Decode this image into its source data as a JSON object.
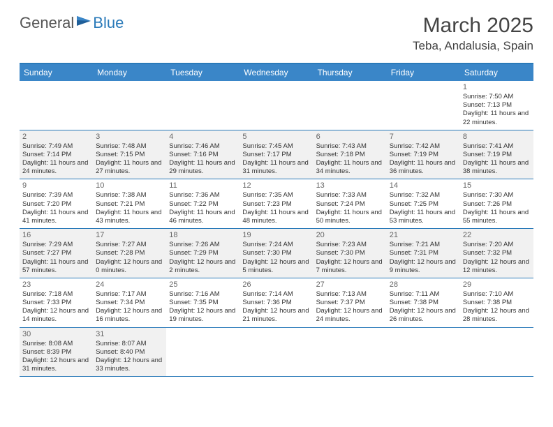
{
  "brand": {
    "general": "General",
    "blue": "Blue"
  },
  "title": "March 2025",
  "location": "Teba, Andalusia, Spain",
  "colors": {
    "header_bg": "#3a86c8",
    "accent": "#2a7ab9",
    "shaded": "#f1f1f1",
    "text": "#333333"
  },
  "dayNames": [
    "Sunday",
    "Monday",
    "Tuesday",
    "Wednesday",
    "Thursday",
    "Friday",
    "Saturday"
  ],
  "weeks": [
    [
      {
        "empty": true
      },
      {
        "empty": true
      },
      {
        "empty": true
      },
      {
        "empty": true
      },
      {
        "empty": true
      },
      {
        "empty": true
      },
      {
        "num": "1",
        "shaded": false,
        "sunrise": "Sunrise: 7:50 AM",
        "sunset": "Sunset: 7:13 PM",
        "daylight": "Daylight: 11 hours and 22 minutes."
      }
    ],
    [
      {
        "num": "2",
        "shaded": true,
        "sunrise": "Sunrise: 7:49 AM",
        "sunset": "Sunset: 7:14 PM",
        "daylight": "Daylight: 11 hours and 24 minutes."
      },
      {
        "num": "3",
        "shaded": true,
        "sunrise": "Sunrise: 7:48 AM",
        "sunset": "Sunset: 7:15 PM",
        "daylight": "Daylight: 11 hours and 27 minutes."
      },
      {
        "num": "4",
        "shaded": true,
        "sunrise": "Sunrise: 7:46 AM",
        "sunset": "Sunset: 7:16 PM",
        "daylight": "Daylight: 11 hours and 29 minutes."
      },
      {
        "num": "5",
        "shaded": true,
        "sunrise": "Sunrise: 7:45 AM",
        "sunset": "Sunset: 7:17 PM",
        "daylight": "Daylight: 11 hours and 31 minutes."
      },
      {
        "num": "6",
        "shaded": true,
        "sunrise": "Sunrise: 7:43 AM",
        "sunset": "Sunset: 7:18 PM",
        "daylight": "Daylight: 11 hours and 34 minutes."
      },
      {
        "num": "7",
        "shaded": true,
        "sunrise": "Sunrise: 7:42 AM",
        "sunset": "Sunset: 7:19 PM",
        "daylight": "Daylight: 11 hours and 36 minutes."
      },
      {
        "num": "8",
        "shaded": true,
        "sunrise": "Sunrise: 7:41 AM",
        "sunset": "Sunset: 7:19 PM",
        "daylight": "Daylight: 11 hours and 38 minutes."
      }
    ],
    [
      {
        "num": "9",
        "shaded": false,
        "sunrise": "Sunrise: 7:39 AM",
        "sunset": "Sunset: 7:20 PM",
        "daylight": "Daylight: 11 hours and 41 minutes."
      },
      {
        "num": "10",
        "shaded": false,
        "sunrise": "Sunrise: 7:38 AM",
        "sunset": "Sunset: 7:21 PM",
        "daylight": "Daylight: 11 hours and 43 minutes."
      },
      {
        "num": "11",
        "shaded": false,
        "sunrise": "Sunrise: 7:36 AM",
        "sunset": "Sunset: 7:22 PM",
        "daylight": "Daylight: 11 hours and 46 minutes."
      },
      {
        "num": "12",
        "shaded": false,
        "sunrise": "Sunrise: 7:35 AM",
        "sunset": "Sunset: 7:23 PM",
        "daylight": "Daylight: 11 hours and 48 minutes."
      },
      {
        "num": "13",
        "shaded": false,
        "sunrise": "Sunrise: 7:33 AM",
        "sunset": "Sunset: 7:24 PM",
        "daylight": "Daylight: 11 hours and 50 minutes."
      },
      {
        "num": "14",
        "shaded": false,
        "sunrise": "Sunrise: 7:32 AM",
        "sunset": "Sunset: 7:25 PM",
        "daylight": "Daylight: 11 hours and 53 minutes."
      },
      {
        "num": "15",
        "shaded": false,
        "sunrise": "Sunrise: 7:30 AM",
        "sunset": "Sunset: 7:26 PM",
        "daylight": "Daylight: 11 hours and 55 minutes."
      }
    ],
    [
      {
        "num": "16",
        "shaded": true,
        "sunrise": "Sunrise: 7:29 AM",
        "sunset": "Sunset: 7:27 PM",
        "daylight": "Daylight: 11 hours and 57 minutes."
      },
      {
        "num": "17",
        "shaded": true,
        "sunrise": "Sunrise: 7:27 AM",
        "sunset": "Sunset: 7:28 PM",
        "daylight": "Daylight: 12 hours and 0 minutes."
      },
      {
        "num": "18",
        "shaded": true,
        "sunrise": "Sunrise: 7:26 AM",
        "sunset": "Sunset: 7:29 PM",
        "daylight": "Daylight: 12 hours and 2 minutes."
      },
      {
        "num": "19",
        "shaded": true,
        "sunrise": "Sunrise: 7:24 AM",
        "sunset": "Sunset: 7:30 PM",
        "daylight": "Daylight: 12 hours and 5 minutes."
      },
      {
        "num": "20",
        "shaded": true,
        "sunrise": "Sunrise: 7:23 AM",
        "sunset": "Sunset: 7:30 PM",
        "daylight": "Daylight: 12 hours and 7 minutes."
      },
      {
        "num": "21",
        "shaded": true,
        "sunrise": "Sunrise: 7:21 AM",
        "sunset": "Sunset: 7:31 PM",
        "daylight": "Daylight: 12 hours and 9 minutes."
      },
      {
        "num": "22",
        "shaded": true,
        "sunrise": "Sunrise: 7:20 AM",
        "sunset": "Sunset: 7:32 PM",
        "daylight": "Daylight: 12 hours and 12 minutes."
      }
    ],
    [
      {
        "num": "23",
        "shaded": false,
        "sunrise": "Sunrise: 7:18 AM",
        "sunset": "Sunset: 7:33 PM",
        "daylight": "Daylight: 12 hours and 14 minutes."
      },
      {
        "num": "24",
        "shaded": false,
        "sunrise": "Sunrise: 7:17 AM",
        "sunset": "Sunset: 7:34 PM",
        "daylight": "Daylight: 12 hours and 16 minutes."
      },
      {
        "num": "25",
        "shaded": false,
        "sunrise": "Sunrise: 7:16 AM",
        "sunset": "Sunset: 7:35 PM",
        "daylight": "Daylight: 12 hours and 19 minutes."
      },
      {
        "num": "26",
        "shaded": false,
        "sunrise": "Sunrise: 7:14 AM",
        "sunset": "Sunset: 7:36 PM",
        "daylight": "Daylight: 12 hours and 21 minutes."
      },
      {
        "num": "27",
        "shaded": false,
        "sunrise": "Sunrise: 7:13 AM",
        "sunset": "Sunset: 7:37 PM",
        "daylight": "Daylight: 12 hours and 24 minutes."
      },
      {
        "num": "28",
        "shaded": false,
        "sunrise": "Sunrise: 7:11 AM",
        "sunset": "Sunset: 7:38 PM",
        "daylight": "Daylight: 12 hours and 26 minutes."
      },
      {
        "num": "29",
        "shaded": false,
        "sunrise": "Sunrise: 7:10 AM",
        "sunset": "Sunset: 7:38 PM",
        "daylight": "Daylight: 12 hours and 28 minutes."
      }
    ],
    [
      {
        "num": "30",
        "shaded": true,
        "sunrise": "Sunrise: 8:08 AM",
        "sunset": "Sunset: 8:39 PM",
        "daylight": "Daylight: 12 hours and 31 minutes."
      },
      {
        "num": "31",
        "shaded": true,
        "sunrise": "Sunrise: 8:07 AM",
        "sunset": "Sunset: 8:40 PM",
        "daylight": "Daylight: 12 hours and 33 minutes."
      },
      {
        "empty": true
      },
      {
        "empty": true
      },
      {
        "empty": true
      },
      {
        "empty": true
      },
      {
        "empty": true
      }
    ]
  ]
}
